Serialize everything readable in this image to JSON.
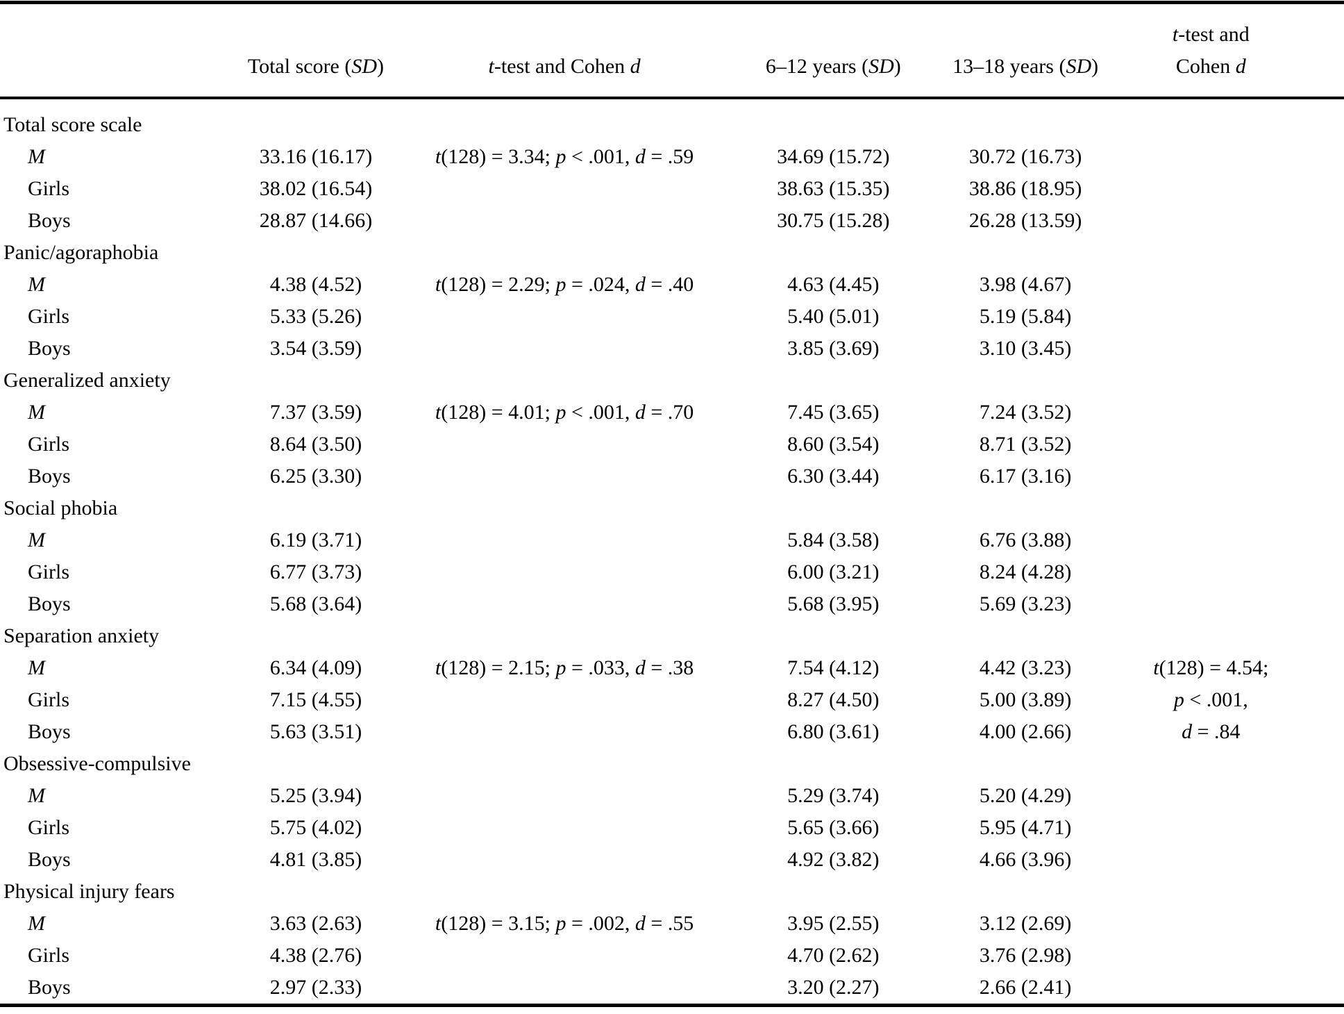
{
  "colors": {
    "text": "#000000",
    "background": "#ffffff",
    "rule": "#000000"
  },
  "table": {
    "columns": [
      "",
      "Total score (SD)",
      "t-test and Cohen d",
      "6–12 years (SD)",
      "13–18 years (SD)",
      "t-test and Cohen d"
    ],
    "sections": [
      {
        "title": "Total score scale",
        "rows": [
          {
            "label": "M",
            "total_sd": "33.16 (16.17)",
            "t_test": "t(128) = 3.34; p < .001, d = .59",
            "age_6_12": "34.69 (15.72)",
            "age_13_18": "30.72 (16.73)",
            "t_test_age": ""
          },
          {
            "label": "Girls",
            "total_sd": "38.02 (16.54)",
            "t_test": "",
            "age_6_12": "38.63 (15.35)",
            "age_13_18": "38.86 (18.95)",
            "t_test_age": ""
          },
          {
            "label": "Boys",
            "total_sd": "28.87 (14.66)",
            "t_test": "",
            "age_6_12": "30.75 (15.28)",
            "age_13_18": "26.28 (13.59)",
            "t_test_age": ""
          }
        ]
      },
      {
        "title": "Panic/agoraphobia",
        "rows": [
          {
            "label": "M",
            "total_sd": "4.38 (4.52)",
            "t_test": "t(128) = 2.29; p = .024, d = .40",
            "age_6_12": "4.63 (4.45)",
            "age_13_18": "3.98 (4.67)",
            "t_test_age": ""
          },
          {
            "label": "Girls",
            "total_sd": "5.33 (5.26)",
            "t_test": "",
            "age_6_12": "5.40 (5.01)",
            "age_13_18": "5.19 (5.84)",
            "t_test_age": ""
          },
          {
            "label": "Boys",
            "total_sd": "3.54 (3.59)",
            "t_test": "",
            "age_6_12": "3.85 (3.69)",
            "age_13_18": "3.10 (3.45)",
            "t_test_age": ""
          }
        ]
      },
      {
        "title": "Generalized anxiety",
        "rows": [
          {
            "label": "M",
            "total_sd": "7.37 (3.59)",
            "t_test": "t(128) = 4.01; p < .001, d = .70",
            "age_6_12": "7.45 (3.65)",
            "age_13_18": "7.24 (3.52)",
            "t_test_age": ""
          },
          {
            "label": "Girls",
            "total_sd": "8.64 (3.50)",
            "t_test": "",
            "age_6_12": "8.60 (3.54)",
            "age_13_18": "8.71 (3.52)",
            "t_test_age": ""
          },
          {
            "label": "Boys",
            "total_sd": "6.25 (3.30)",
            "t_test": "",
            "age_6_12": "6.30 (3.44)",
            "age_13_18": "6.17 (3.16)",
            "t_test_age": ""
          }
        ]
      },
      {
        "title": "Social phobia",
        "rows": [
          {
            "label": "M",
            "total_sd": "6.19 (3.71)",
            "t_test": "",
            "age_6_12": "5.84 (3.58)",
            "age_13_18": "6.76 (3.88)",
            "t_test_age": ""
          },
          {
            "label": "Girls",
            "total_sd": "6.77 (3.73)",
            "t_test": "",
            "age_6_12": "6.00 (3.21)",
            "age_13_18": "8.24 (4.28)",
            "t_test_age": ""
          },
          {
            "label": "Boys",
            "total_sd": "5.68 (3.64)",
            "t_test": "",
            "age_6_12": "5.68 (3.95)",
            "age_13_18": "5.69 (3.23)",
            "t_test_age": ""
          }
        ]
      },
      {
        "title": "Separation anxiety",
        "rows": [
          {
            "label": "M",
            "total_sd": "6.34 (4.09)",
            "t_test": "t(128) = 2.15; p = .033, d = .38",
            "age_6_12": "7.54 (4.12)",
            "age_13_18": "4.42 (3.23)",
            "t_test_age": "t(128) = 4.54;"
          },
          {
            "label": "Girls",
            "total_sd": "7.15 (4.55)",
            "t_test": "",
            "age_6_12": "8.27 (4.50)",
            "age_13_18": "5.00 (3.89)",
            "t_test_age": "p < .001,"
          },
          {
            "label": "Boys",
            "total_sd": "5.63 (3.51)",
            "t_test": "",
            "age_6_12": "6.80 (3.61)",
            "age_13_18": "4.00 (2.66)",
            "t_test_age": "d = .84"
          }
        ]
      },
      {
        "title": "Obsessive-compulsive",
        "rows": [
          {
            "label": "M",
            "total_sd": "5.25 (3.94)",
            "t_test": "",
            "age_6_12": "5.29 (3.74)",
            "age_13_18": "5.20 (4.29)",
            "t_test_age": ""
          },
          {
            "label": "Girls",
            "total_sd": "5.75 (4.02)",
            "t_test": "",
            "age_6_12": "5.65 (3.66)",
            "age_13_18": "5.95 (4.71)",
            "t_test_age": ""
          },
          {
            "label": "Boys",
            "total_sd": "4.81 (3.85)",
            "t_test": "",
            "age_6_12": "4.92 (3.82)",
            "age_13_18": "4.66 (3.96)",
            "t_test_age": ""
          }
        ]
      },
      {
        "title": "Physical injury fears",
        "rows": [
          {
            "label": "M",
            "total_sd": "3.63 (2.63)",
            "t_test": "t(128) = 3.15; p = .002, d = .55",
            "age_6_12": "3.95 (2.55)",
            "age_13_18": "3.12 (2.69)",
            "t_test_age": ""
          },
          {
            "label": "Girls",
            "total_sd": "4.38 (2.76)",
            "t_test": "",
            "age_6_12": "4.70 (2.62)",
            "age_13_18": "3.76 (2.98)",
            "t_test_age": ""
          },
          {
            "label": "Boys",
            "total_sd": "2.97 (2.33)",
            "t_test": "",
            "age_6_12": "3.20 (2.27)",
            "age_13_18": "2.66 (2.41)",
            "t_test_age": ""
          }
        ]
      }
    ]
  }
}
